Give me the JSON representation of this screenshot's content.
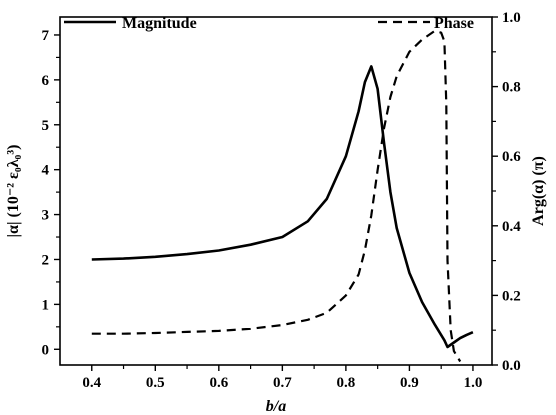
{
  "chart_data": {
    "type": "line",
    "xlabel": "b/a",
    "ylabel_left": "|α| (10⁻² ε₀λ₀³)",
    "ylabel_right": "Arg(α) (π)",
    "xlim": [
      0.35,
      1.03
    ],
    "ylim_left": [
      -0.35,
      7.4
    ],
    "ylim_right": [
      0.0,
      1.0
    ],
    "x_ticks": [
      0.4,
      0.5,
      0.6,
      0.7,
      0.8,
      0.9,
      1.0
    ],
    "y_ticks_left": [
      0,
      1,
      2,
      3,
      4,
      5,
      6,
      7
    ],
    "y_ticks_right": [
      0.0,
      0.2,
      0.4,
      0.6,
      0.8,
      1.0
    ],
    "x_tick_labels": [
      "0.4",
      "0.5",
      "0.6",
      "0.7",
      "0.8",
      "0.9",
      "1.0"
    ],
    "y_tick_labels_left": [
      "0",
      "1",
      "2",
      "3",
      "4",
      "5",
      "6",
      "7"
    ],
    "y_tick_labels_right": [
      "0.0",
      "0.2",
      "0.4",
      "0.6",
      "0.8",
      "1.0"
    ],
    "grid": false,
    "legend_position": "top",
    "series": [
      {
        "name": "Magnitude",
        "axis": "left",
        "style": "solid",
        "color": "#000000",
        "x": [
          0.4,
          0.45,
          0.5,
          0.55,
          0.6,
          0.65,
          0.7,
          0.74,
          0.77,
          0.8,
          0.82,
          0.83,
          0.84,
          0.85,
          0.86,
          0.87,
          0.88,
          0.9,
          0.92,
          0.94,
          0.955,
          0.96,
          0.97,
          0.98,
          0.99,
          1.0
        ],
        "y": [
          2.0,
          2.02,
          2.06,
          2.12,
          2.2,
          2.33,
          2.5,
          2.85,
          3.35,
          4.3,
          5.3,
          5.95,
          6.3,
          5.8,
          4.6,
          3.5,
          2.7,
          1.7,
          1.05,
          0.55,
          0.2,
          0.05,
          0.15,
          0.25,
          0.32,
          0.38
        ]
      },
      {
        "name": "Phase",
        "axis": "right",
        "style": "dashed",
        "color": "#000000",
        "x": [
          0.4,
          0.45,
          0.5,
          0.55,
          0.6,
          0.65,
          0.7,
          0.74,
          0.77,
          0.8,
          0.82,
          0.83,
          0.84,
          0.85,
          0.86,
          0.87,
          0.88,
          0.9,
          0.92,
          0.94,
          0.95,
          0.955,
          0.958,
          0.96,
          0.965,
          0.97,
          0.98
        ],
        "y": [
          0.09,
          0.09,
          0.092,
          0.095,
          0.098,
          0.104,
          0.115,
          0.13,
          0.15,
          0.2,
          0.26,
          0.33,
          0.43,
          0.56,
          0.68,
          0.77,
          0.83,
          0.9,
          0.935,
          0.96,
          0.955,
          0.93,
          0.75,
          0.3,
          0.1,
          0.04,
          0.01
        ]
      }
    ]
  }
}
